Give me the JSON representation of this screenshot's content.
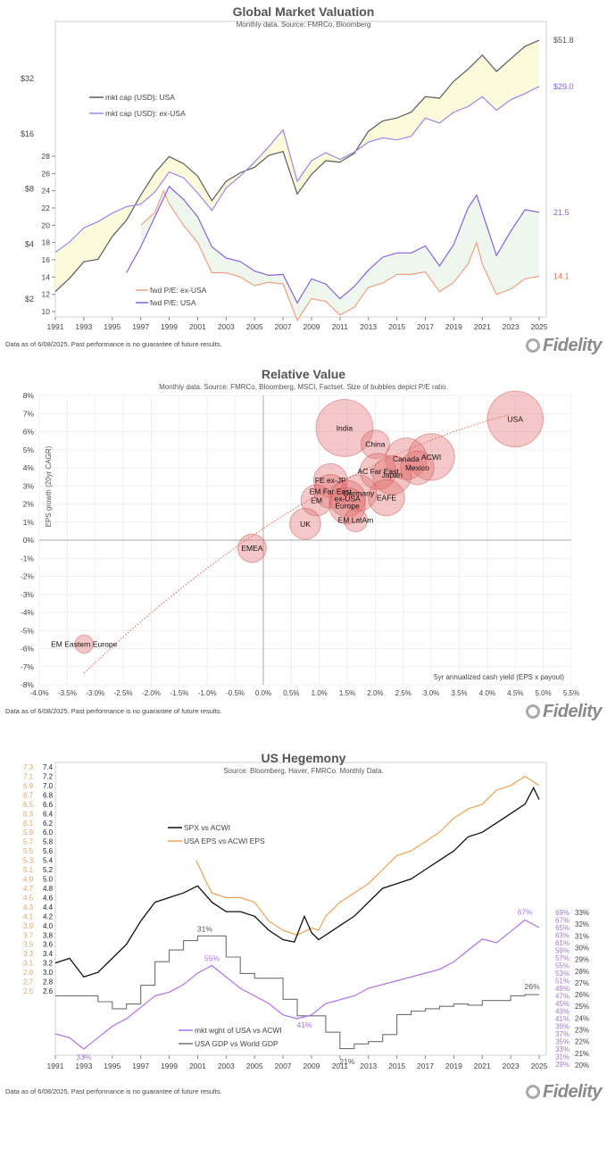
{
  "footer_note": "Data as of 6/08/2025. Past performance is no guarantee of future results.",
  "brand": "Fidelity",
  "chart_data": [
    {
      "type": "line",
      "title": "Global Market Valuation",
      "subtitle": "Monthly data.  Source: FMRCo, Bloomberg",
      "x_ticks": [
        "1991",
        "1993",
        "1995",
        "1997",
        "1999",
        "2001",
        "2003",
        "2005",
        "2007",
        "2009",
        "2011",
        "2013",
        "2015",
        "2017",
        "2019",
        "2021",
        "2023",
        "2025"
      ],
      "xlim": [
        1991,
        2025.5
      ],
      "y_upper_ticks": [
        "$2",
        "$4",
        "$8",
        "$16",
        "$32"
      ],
      "y_upper_scale": "log2",
      "y_upper_lim": [
        1.6,
        60
      ],
      "y_lower_ticks": [
        "10",
        "12",
        "14",
        "16",
        "18",
        "20",
        "22",
        "24",
        "26",
        "28"
      ],
      "y_lower_lim": [
        9,
        28
      ],
      "series": [
        {
          "name": "mkt cap (USD): USA",
          "color": "#5c5c5c",
          "axis": "upper",
          "x": [
            1991,
            1992,
            1993,
            1994,
            1995,
            1996,
            1997,
            1998,
            1999,
            2000,
            2001,
            2002,
            2003,
            2004,
            2005,
            2006,
            2007,
            2008,
            2009,
            2010,
            2011,
            2012,
            2013,
            2014,
            2015,
            2016,
            2017,
            2018,
            2019,
            2020,
            2021,
            2022,
            2023,
            2024,
            2025
          ],
          "values": [
            2.2,
            2.6,
            3.2,
            3.3,
            4.4,
            5.4,
            7.4,
            9.8,
            12,
            11,
            9.4,
            6.9,
            8.8,
            9.8,
            10.5,
            12.2,
            12.8,
            7.5,
            9.6,
            11.4,
            11.2,
            12.5,
            16.5,
            18.8,
            19.5,
            21,
            25.5,
            25,
            31,
            36,
            43,
            35,
            41,
            48,
            51.8
          ]
        },
        {
          "name": "mkt cap (USD): ex-USA",
          "color": "#9e85ec",
          "axis": "upper",
          "x": [
            1991,
            1992,
            1993,
            1994,
            1995,
            1996,
            1997,
            1998,
            1999,
            2000,
            2001,
            2002,
            2003,
            2004,
            2005,
            2006,
            2007,
            2008,
            2009,
            2010,
            2011,
            2012,
            2013,
            2014,
            2015,
            2016,
            2017,
            2018,
            2019,
            2020,
            2021,
            2022,
            2023,
            2024,
            2025
          ],
          "values": [
            3.6,
            4.1,
            4.9,
            5.3,
            5.9,
            6.4,
            6.6,
            7.7,
            9.9,
            9.2,
            7.6,
            6.1,
            8.1,
            9.4,
            11.2,
            13.6,
            16.8,
            8.8,
            11.4,
            12.6,
            11.6,
            12.7,
            14.4,
            15.2,
            14.8,
            15.5,
            19.5,
            18.3,
            21,
            22.5,
            25.5,
            21.5,
            24.5,
            26.5,
            29.0
          ]
        },
        {
          "name": "fwd P/E: ex-USA",
          "color": "#f0a080",
          "axis": "lower",
          "x": [
            1997,
            1998,
            1998.6,
            1999,
            2000,
            2001,
            2002,
            2003,
            2004,
            2005,
            2006,
            2007,
            2008,
            2009,
            2010,
            2011,
            2012,
            2013,
            2014,
            2015,
            2016,
            2017,
            2018,
            2019,
            2020,
            2020.6,
            2021,
            2022,
            2023,
            2024,
            2025
          ],
          "values": [
            20,
            21.5,
            24,
            22.5,
            20,
            18,
            14.5,
            14.5,
            14,
            13,
            13.4,
            13.2,
            9,
            11.5,
            11.2,
            9.6,
            10.5,
            12.8,
            13.3,
            14.3,
            14.3,
            14.6,
            12.3,
            13.4,
            15.5,
            18,
            15.5,
            12,
            12.6,
            13.8,
            14.1
          ]
        },
        {
          "name": "fwd P/E: USA",
          "color": "#8a60e0",
          "axis": "lower",
          "x": [
            1996,
            1997,
            1998,
            1999,
            2000,
            2001,
            2002,
            2003,
            2004,
            2005,
            2006,
            2007,
            2008,
            2009,
            2010,
            2011,
            2012,
            2013,
            2014,
            2015,
            2016,
            2017,
            2018,
            2019,
            2020,
            2020.6,
            2021,
            2022,
            2023,
            2024,
            2025
          ],
          "values": [
            14.5,
            17.5,
            21,
            24.5,
            23,
            21,
            17.5,
            16.2,
            15.8,
            14.7,
            14.2,
            14.3,
            11,
            13.8,
            13.2,
            11.5,
            12.9,
            14.8,
            16.3,
            16.8,
            16.8,
            17.6,
            15.3,
            17.8,
            22,
            23.5,
            21.5,
            16.5,
            19.3,
            21.8,
            21.5
          ]
        }
      ],
      "end_labels": [
        "$51.8",
        "$29.0",
        "21.5",
        "14.1"
      ]
    },
    {
      "type": "scatter",
      "title": "Relative Value",
      "subtitle": "Monthly data.  Source: FMRCo, Bloomberg, MSCI, Factset.  Size of bubbles depict P/E ratio.",
      "xlabel": "5yr annualized cash yield (EPS x payout)",
      "ylabel": "EPS growth (20yr CAGR)",
      "xlim": [
        -4.0,
        5.5
      ],
      "ylim": [
        -8,
        8
      ],
      "x_ticks": [
        "-4.0%",
        "-3.5%",
        "-3.0%",
        "-2.5%",
        "-2.0%",
        "-1.5%",
        "-1.0%",
        "-0.5%",
        "0.0%",
        "0.5%",
        "1.0%",
        "1.5%",
        "2.0%",
        "2.5%",
        "3.0%",
        "3.5%",
        "4.0%",
        "4.5%",
        "5.0%",
        "5.5%"
      ],
      "y_ticks": [
        "-8%",
        "-7%",
        "-6%",
        "-5%",
        "-4%",
        "-3%",
        "-2%",
        "-1%",
        "0%",
        "1%",
        "2%",
        "3%",
        "4%",
        "5%",
        "6%",
        "7%",
        "8%"
      ],
      "points": [
        {
          "label": "USA",
          "x": 4.5,
          "y": 6.7,
          "pe": 21.5
        },
        {
          "label": "India",
          "x": 1.45,
          "y": 6.2,
          "pe": 22
        },
        {
          "label": "China",
          "x": 2.0,
          "y": 5.3,
          "pe": 11
        },
        {
          "label": "ACWI",
          "x": 3.0,
          "y": 4.6,
          "pe": 18
        },
        {
          "label": "Canada",
          "x": 2.55,
          "y": 4.5,
          "pe": 16
        },
        {
          "label": "Mexico",
          "x": 2.75,
          "y": 4.0,
          "pe": 13
        },
        {
          "label": "AC Far East",
          "x": 2.05,
          "y": 3.8,
          "pe": 14
        },
        {
          "label": "Japan",
          "x": 2.3,
          "y": 3.6,
          "pe": 15
        },
        {
          "label": "FE ex-JP",
          "x": 1.2,
          "y": 3.3,
          "pe": 13
        },
        {
          "label": "EM Far East",
          "x": 1.2,
          "y": 2.7,
          "pe": 13
        },
        {
          "label": "Germany",
          "x": 1.7,
          "y": 2.6,
          "pe": 14
        },
        {
          "label": "EAFE",
          "x": 2.2,
          "y": 2.35,
          "pe": 14
        },
        {
          "label": "ex-USA",
          "x": 1.5,
          "y": 2.3,
          "pe": 14
        },
        {
          "label": "EM",
          "x": 0.95,
          "y": 2.2,
          "pe": 12
        },
        {
          "label": "Europe",
          "x": 1.5,
          "y": 1.9,
          "pe": 14
        },
        {
          "label": "EM LatAm",
          "x": 1.65,
          "y": 1.1,
          "pe": 9
        },
        {
          "label": "UK",
          "x": 0.75,
          "y": 0.9,
          "pe": 12
        },
        {
          "label": "EMEA",
          "x": -0.2,
          "y": -0.45,
          "pe": 11
        },
        {
          "label": "EM Eastern Europe",
          "x": -3.2,
          "y": -5.75,
          "pe": 7
        }
      ],
      "trendline": {
        "style": "dotted",
        "color": "#e06050"
      }
    },
    {
      "type": "line",
      "title": "US Hegemony",
      "subtitle": "Source: Bloomberg, Haver, FMRCo.  Monthly Data.",
      "x_ticks": [
        "1991",
        "1993",
        "1995",
        "1997",
        "1999",
        "2001",
        "2003",
        "2005",
        "2007",
        "2009",
        "2011",
        "2013",
        "2015",
        "2017",
        "2019",
        "2021",
        "2023",
        "2025"
      ],
      "xlim": [
        1991,
        2025.5
      ],
      "y_left_black_ticks": [
        "2.6",
        "2.8",
        "3.0",
        "3.2",
        "3.4",
        "3.6",
        "3.8",
        "4.0",
        "4.2",
        "4.4",
        "4.6",
        "4.8",
        "5.0",
        "5.2",
        "5.4",
        "5.6",
        "5.8",
        "6.0",
        "6.2",
        "6.4",
        "6.6",
        "6.8",
        "7.0",
        "7.2",
        "7.4"
      ],
      "y_left_orange_ticks": [
        "2.5",
        "2.7",
        "2.9",
        "3.1",
        "3.3",
        "3.5",
        "3.7",
        "3.9",
        "4.1",
        "4.3",
        "4.5",
        "4.7",
        "4.9",
        "5.1",
        "5.3",
        "5.5",
        "5.7",
        "5.9",
        "6.1",
        "6.3",
        "6.5",
        "6.7",
        "6.9",
        "7.1",
        "7.3"
      ],
      "y_right_purple_ticks": [
        "29%",
        "31%",
        "33%",
        "35%",
        "37%",
        "39%",
        "41%",
        "43%",
        "45%",
        "47%",
        "49%",
        "51%",
        "53%",
        "55%",
        "57%",
        "59%",
        "61%",
        "63%",
        "65%",
        "67%",
        "69%"
      ],
      "y_right_gray_ticks": [
        "20%",
        "21%",
        "22%",
        "23%",
        "24%",
        "25%",
        "26%",
        "27%",
        "28%",
        "29%",
        "30%",
        "31%",
        "32%",
        "33%"
      ],
      "series": [
        {
          "name": "SPX vs ACWI",
          "color": "#111111",
          "x": [
            1991,
            1992,
            1993,
            1994,
            1995,
            1996,
            1997,
            1998,
            1999,
            2000,
            2001,
            2002,
            2003,
            2004,
            2005,
            2006,
            2007,
            2007.8,
            2008.5,
            2009,
            2009.5,
            2010,
            2011,
            2012,
            2013,
            2014,
            2015,
            2016,
            2017,
            2018,
            2019,
            2020,
            2021,
            2022,
            2023,
            2024,
            2024.6,
            2025
          ],
          "values": [
            3.2,
            3.3,
            2.9,
            3.0,
            3.3,
            3.6,
            4.1,
            4.5,
            4.6,
            4.7,
            4.85,
            4.5,
            4.3,
            4.3,
            4.2,
            3.9,
            3.7,
            3.65,
            4.2,
            3.85,
            3.7,
            3.8,
            4.0,
            4.2,
            4.5,
            4.8,
            4.9,
            5.0,
            5.2,
            5.4,
            5.6,
            5.9,
            6.0,
            6.2,
            6.4,
            6.6,
            6.95,
            6.7
          ]
        },
        {
          "name": "USA EPS vs ACWI EPS",
          "color": "#f0a050",
          "x": [
            2000.9,
            2001.5,
            2002,
            2003,
            2004,
            2005,
            2006,
            2007,
            2008,
            2009,
            2009.5,
            2010,
            2011,
            2012,
            2013,
            2014,
            2015,
            2016,
            2017,
            2018,
            2019,
            2020,
            2021,
            2022,
            2023,
            2024,
            2025
          ],
          "values": [
            5.3,
            4.9,
            4.6,
            4.5,
            4.5,
            4.4,
            4.0,
            3.8,
            3.7,
            3.85,
            3.8,
            4.1,
            4.4,
            4.6,
            4.8,
            5.1,
            5.4,
            5.5,
            5.7,
            5.9,
            6.2,
            6.4,
            6.5,
            6.8,
            6.9,
            7.1,
            6.9
          ]
        },
        {
          "name": "mkt wght of USA vs ACWI",
          "color": "#b070e8",
          "x": [
            1991,
            1992,
            1993,
            1994,
            1995,
            1996,
            1997,
            1998,
            1999,
            2000,
            2001,
            2002,
            2003,
            2004,
            2005,
            2006,
            2007,
            2008,
            2009,
            2010,
            2011,
            2012,
            2013,
            2014,
            2015,
            2016,
            2017,
            2018,
            2019,
            2020,
            2021,
            2022,
            2023,
            2024,
            2025
          ],
          "values": [
            37,
            36,
            33,
            36,
            39,
            41,
            44,
            47,
            48,
            50,
            53,
            55,
            52,
            49,
            47,
            45,
            42,
            41,
            42,
            45,
            46,
            47,
            49,
            50,
            51,
            52,
            53,
            54,
            56,
            59,
            62,
            61,
            64,
            67,
            65
          ]
        },
        {
          "name": "USA GDP vs World GDP",
          "color": "#707070",
          "x": [
            1991,
            1992,
            1993,
            1994,
            1995,
            1996,
            1997,
            1998,
            1999,
            2000,
            2001,
            2002,
            2003,
            2004,
            2005,
            2006,
            2007,
            2008,
            2009,
            2010,
            2011,
            2012,
            2013,
            2014,
            2015,
            2016,
            2017,
            2018,
            2019,
            2020,
            2021,
            2022,
            2023,
            2024,
            2025
          ],
          "values": [
            25.9,
            25.9,
            25.9,
            25.4,
            24.8,
            25.2,
            26.8,
            28.8,
            29.8,
            30.6,
            31,
            31,
            29.2,
            27.8,
            27.4,
            27.4,
            25.6,
            24.2,
            24.2,
            22.8,
            21.4,
            21.8,
            22,
            22.6,
            24.3,
            24.6,
            24.8,
            25,
            25.2,
            25.1,
            25.5,
            25.5,
            25.9,
            26,
            26
          ]
        }
      ],
      "annotations": [
        "31%",
        "55%",
        "33%",
        "41%",
        "21%",
        "67%",
        "26%"
      ]
    }
  ]
}
